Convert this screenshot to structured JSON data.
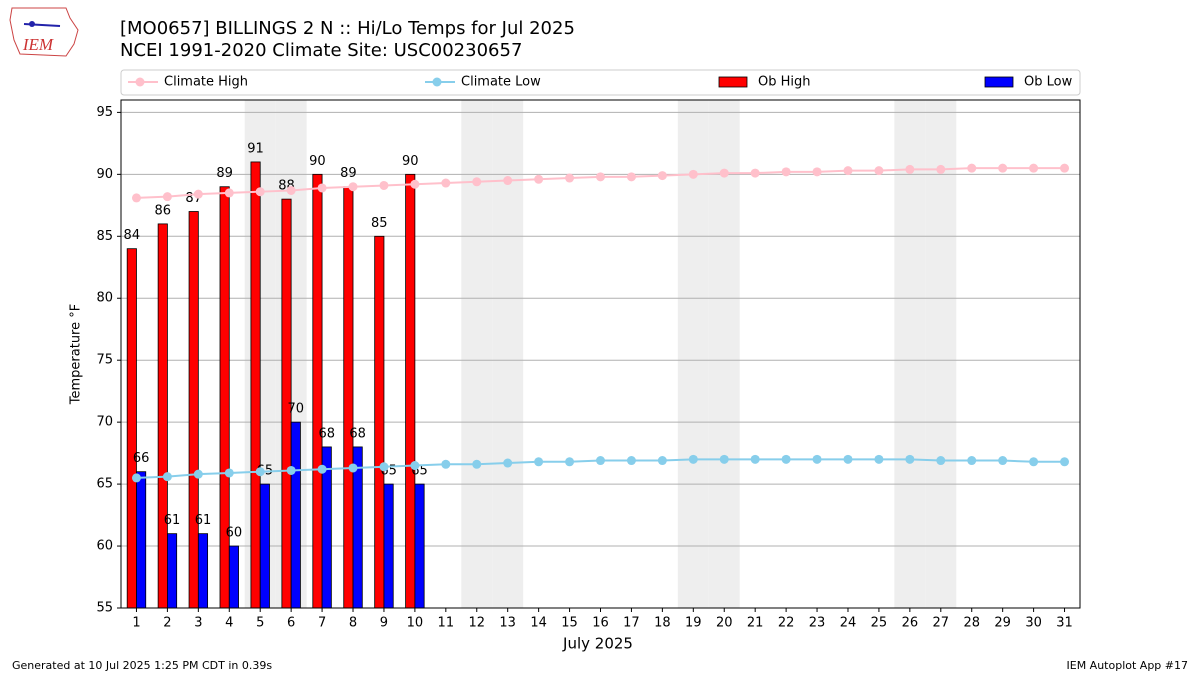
{
  "chart_data": {
    "type": "bar",
    "title": "[MO0657] BILLINGS 2 N :: Hi/Lo Temps for Jul 2025",
    "subtitle": "NCEI 1991-2020 Climate Site: USC00230657",
    "logo_text": "IEM",
    "xlabel": "July 2025",
    "ylabel": "Temperature °F",
    "footer_left": "Generated at 10 Jul 2025 1:25 PM CDT in 0.39s",
    "footer_right": "IEM Autoplot App #17",
    "x": [
      1,
      2,
      3,
      4,
      5,
      6,
      7,
      8,
      9,
      10,
      11,
      12,
      13,
      14,
      15,
      16,
      17,
      18,
      19,
      20,
      21,
      22,
      23,
      24,
      25,
      26,
      27,
      28,
      29,
      30,
      31
    ],
    "xlim": [
      0.5,
      31.5
    ],
    "xticks": [
      1,
      2,
      3,
      4,
      5,
      6,
      7,
      8,
      9,
      10,
      11,
      12,
      13,
      14,
      15,
      16,
      17,
      18,
      19,
      20,
      21,
      22,
      23,
      24,
      25,
      26,
      27,
      28,
      29,
      30,
      31
    ],
    "ylim": [
      55,
      96
    ],
    "yticks": [
      55,
      60,
      65,
      70,
      75,
      80,
      85,
      90,
      95
    ],
    "grid": true,
    "legend": "top",
    "shaded_days": [
      5,
      6,
      12,
      13,
      19,
      20,
      26,
      27
    ],
    "series": [
      {
        "name": "Climate High",
        "type": "line",
        "color": "#ffc0cb",
        "values": [
          88.1,
          88.2,
          88.4,
          88.5,
          88.6,
          88.7,
          88.9,
          89.0,
          89.1,
          89.2,
          89.3,
          89.4,
          89.5,
          89.6,
          89.7,
          89.8,
          89.8,
          89.9,
          90.0,
          90.1,
          90.1,
          90.2,
          90.2,
          90.3,
          90.3,
          90.4,
          90.4,
          90.5,
          90.5,
          90.5,
          90.5
        ]
      },
      {
        "name": "Climate Low",
        "type": "line",
        "color": "#87ceeb",
        "values": [
          65.5,
          65.6,
          65.8,
          65.9,
          66.0,
          66.1,
          66.2,
          66.3,
          66.4,
          66.5,
          66.6,
          66.6,
          66.7,
          66.8,
          66.8,
          66.9,
          66.9,
          66.9,
          67.0,
          67.0,
          67.0,
          67.0,
          67.0,
          67.0,
          67.0,
          67.0,
          66.9,
          66.9,
          66.9,
          66.8,
          66.8
        ]
      },
      {
        "name": "Ob High",
        "type": "bar",
        "color": "#ff0000",
        "values": [
          84,
          86,
          87,
          89,
          91,
          88,
          90,
          89,
          85,
          90,
          null,
          null,
          null,
          null,
          null,
          null,
          null,
          null,
          null,
          null,
          null,
          null,
          null,
          null,
          null,
          null,
          null,
          null,
          null,
          null,
          null
        ]
      },
      {
        "name": "Ob Low",
        "type": "bar",
        "color": "#0000ff",
        "values": [
          66,
          61,
          61,
          60,
          65,
          70,
          68,
          68,
          65,
          65,
          null,
          null,
          null,
          null,
          null,
          null,
          null,
          null,
          null,
          null,
          null,
          null,
          null,
          null,
          null,
          null,
          null,
          null,
          null,
          null,
          null
        ]
      }
    ]
  }
}
